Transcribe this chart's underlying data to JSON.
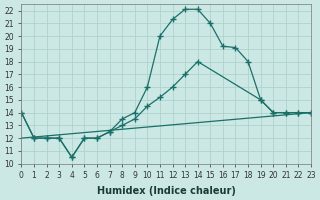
{
  "background_color": "#cce8e5",
  "grid_color": "#aacfcc",
  "line_color": "#1a7068",
  "xlim": [
    0,
    23
  ],
  "ylim": [
    10,
    22.5
  ],
  "xlabel": "Humidex (Indice chaleur)",
  "yticks": [
    10,
    11,
    12,
    13,
    14,
    15,
    16,
    17,
    18,
    19,
    20,
    21,
    22
  ],
  "xticks": [
    0,
    1,
    2,
    3,
    4,
    5,
    6,
    7,
    8,
    9,
    10,
    11,
    12,
    13,
    14,
    15,
    16,
    17,
    18,
    19,
    20,
    21,
    22,
    23
  ],
  "series1_x": [
    0,
    1,
    2,
    3,
    4,
    5,
    6,
    7,
    8,
    9,
    10,
    11,
    12,
    13,
    14,
    15,
    16,
    17,
    18,
    19,
    20,
    21,
    22,
    23
  ],
  "series1_y": [
    14,
    12,
    12,
    12,
    10.5,
    12,
    12,
    12.5,
    13.5,
    14,
    16,
    20,
    21.3,
    22.1,
    22.1,
    21,
    19.2,
    19.1,
    18,
    15,
    14,
    14,
    14,
    14
  ],
  "series2_x": [
    0,
    1,
    2,
    3,
    4,
    5,
    6,
    7,
    8,
    9,
    10,
    11,
    12,
    13,
    14,
    19,
    20,
    21,
    22,
    23
  ],
  "series2_y": [
    14,
    12,
    12,
    12,
    10.5,
    12,
    12,
    12.5,
    13.0,
    13.5,
    14.5,
    15.2,
    16,
    17,
    18.0,
    15,
    14,
    14,
    14,
    14
  ],
  "series3_x": [
    0,
    23
  ],
  "series3_y": [
    12.0,
    14.0
  ],
  "linewidth": 0.9,
  "font_size_label": 7,
  "font_size_tick": 5.5
}
